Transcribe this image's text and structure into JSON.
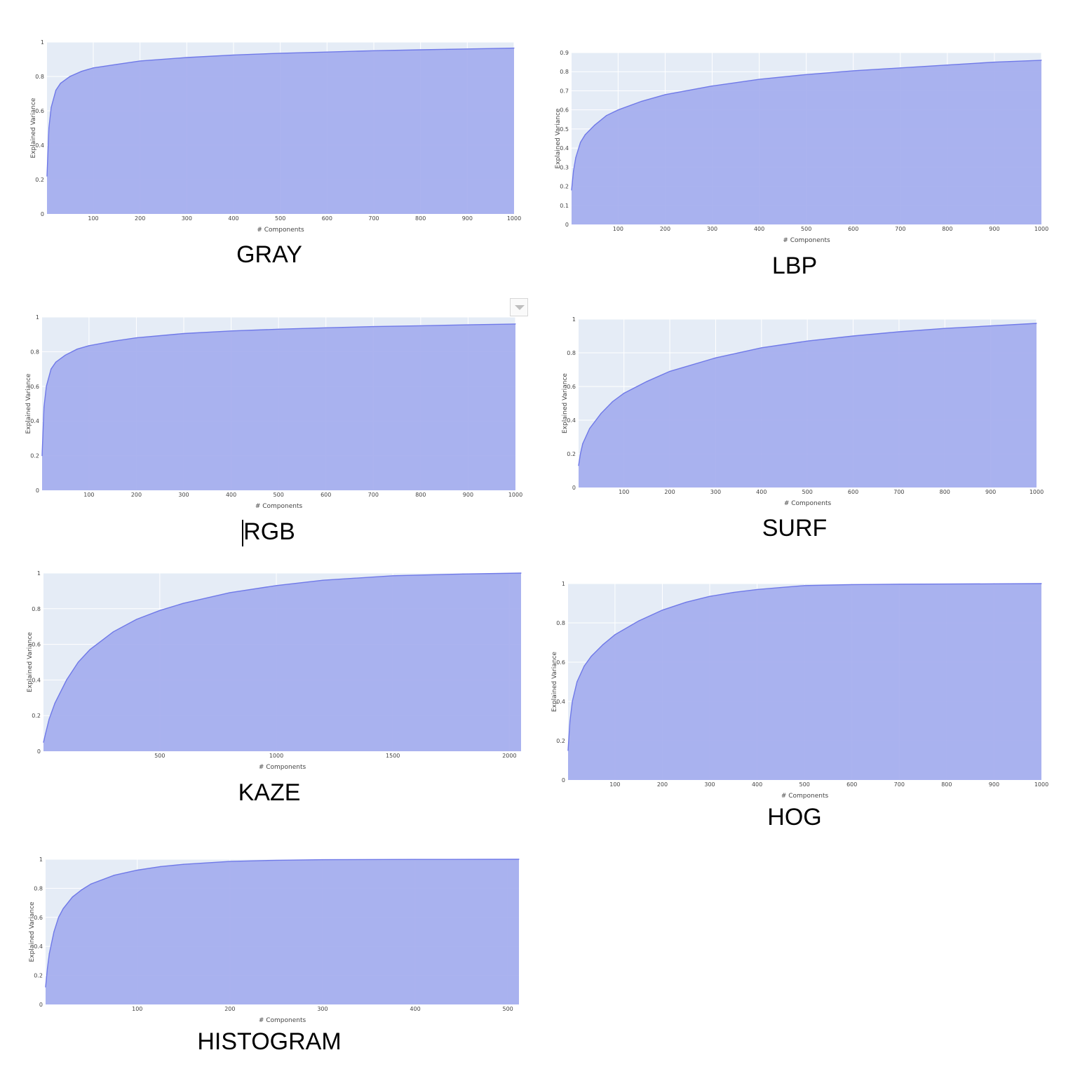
{
  "colors": {
    "plot_bg": "#e5ecf6",
    "grid": "#ffffff",
    "fill": "#a4acee",
    "line": "#6f79e8",
    "tick_text": "#444444"
  },
  "controls": {
    "dropdown_icon": "chevron-down-icon"
  },
  "chart_data": [
    {
      "id": "gray",
      "type": "area",
      "caption": "GRAY",
      "xlabel": "# Components",
      "ylabel": "Explained Variance",
      "xlim": [
        1,
        1000
      ],
      "ylim": [
        0,
        1
      ],
      "xticks": [
        100,
        200,
        300,
        400,
        500,
        600,
        700,
        800,
        900,
        1000
      ],
      "yticks": [
        0,
        0.2,
        0.4,
        0.6,
        0.8,
        1
      ],
      "ytick_labels": [
        "0",
        "0.2",
        "0.4",
        "0.6",
        "0.8",
        "1"
      ],
      "grid": true,
      "x": [
        1,
        5,
        10,
        20,
        30,
        50,
        75,
        100,
        150,
        200,
        300,
        400,
        500,
        600,
        700,
        800,
        900,
        1000
      ],
      "y": [
        0.22,
        0.5,
        0.62,
        0.72,
        0.76,
        0.8,
        0.83,
        0.85,
        0.87,
        0.89,
        0.91,
        0.925,
        0.935,
        0.942,
        0.95,
        0.955,
        0.96,
        0.965
      ]
    },
    {
      "id": "lbp",
      "type": "area",
      "caption": "LBP",
      "xlabel": "# Components",
      "ylabel": "Explained Variance",
      "xlim": [
        1,
        1000
      ],
      "ylim": [
        0,
        0.9
      ],
      "xticks": [
        100,
        200,
        300,
        400,
        500,
        600,
        700,
        800,
        900,
        1000
      ],
      "yticks": [
        0,
        0.1,
        0.2,
        0.3,
        0.4,
        0.5,
        0.6,
        0.7,
        0.8,
        0.9
      ],
      "ytick_labels": [
        "0",
        "0.1",
        "0.2",
        "0.3",
        "0.4",
        "0.5",
        "0.6",
        "0.7",
        "0.8",
        "0.9"
      ],
      "grid": true,
      "x": [
        1,
        5,
        10,
        20,
        30,
        50,
        75,
        100,
        150,
        200,
        300,
        400,
        500,
        600,
        700,
        800,
        900,
        1000
      ],
      "y": [
        0.18,
        0.28,
        0.35,
        0.43,
        0.47,
        0.52,
        0.57,
        0.6,
        0.645,
        0.68,
        0.725,
        0.76,
        0.785,
        0.805,
        0.82,
        0.835,
        0.85,
        0.86
      ]
    },
    {
      "id": "rgb",
      "type": "area",
      "caption": "RGB",
      "xlabel": "# Components",
      "ylabel": "Explained Variance",
      "xlim": [
        1,
        1000
      ],
      "ylim": [
        0,
        1
      ],
      "xticks": [
        100,
        200,
        300,
        400,
        500,
        600,
        700,
        800,
        900,
        1000
      ],
      "yticks": [
        0,
        0.2,
        0.4,
        0.6,
        0.8,
        1
      ],
      "ytick_labels": [
        "0",
        "0.2",
        "0.4",
        "0.6",
        "0.8",
        "1"
      ],
      "grid": true,
      "x": [
        1,
        5,
        10,
        20,
        30,
        50,
        75,
        100,
        150,
        200,
        300,
        400,
        500,
        600,
        700,
        800,
        900,
        1000
      ],
      "y": [
        0.2,
        0.48,
        0.6,
        0.7,
        0.74,
        0.78,
        0.815,
        0.835,
        0.86,
        0.88,
        0.905,
        0.92,
        0.93,
        0.938,
        0.945,
        0.95,
        0.955,
        0.96
      ]
    },
    {
      "id": "surf",
      "type": "area",
      "caption": "SURF",
      "xlabel": "# Components",
      "ylabel": "Explained Variance",
      "xlim": [
        1,
        1000
      ],
      "ylim": [
        0,
        1
      ],
      "xticks": [
        100,
        200,
        300,
        400,
        500,
        600,
        700,
        800,
        900,
        1000
      ],
      "yticks": [
        0,
        0.2,
        0.4,
        0.6,
        0.8,
        1
      ],
      "ytick_labels": [
        "0",
        "0.2",
        "0.4",
        "0.6",
        "0.8",
        "1"
      ],
      "grid": true,
      "x": [
        1,
        5,
        10,
        25,
        50,
        75,
        100,
        150,
        200,
        300,
        400,
        500,
        600,
        700,
        800,
        900,
        1000
      ],
      "y": [
        0.13,
        0.2,
        0.26,
        0.35,
        0.44,
        0.51,
        0.56,
        0.63,
        0.69,
        0.77,
        0.83,
        0.87,
        0.9,
        0.925,
        0.945,
        0.96,
        0.975
      ]
    },
    {
      "id": "kaze",
      "type": "area",
      "caption": "KAZE",
      "xlabel": "# Components",
      "ylabel": "Explained Variance",
      "xlim": [
        1,
        2050
      ],
      "ylim": [
        0,
        1
      ],
      "xticks": [
        500,
        1000,
        1500,
        2000
      ],
      "yticks": [
        0,
        0.2,
        0.4,
        0.6,
        0.8,
        1
      ],
      "ytick_labels": [
        "0",
        "0.2",
        "0.4",
        "0.6",
        "0.8",
        "1"
      ],
      "grid": true,
      "x": [
        1,
        10,
        25,
        50,
        100,
        150,
        200,
        300,
        400,
        500,
        600,
        700,
        800,
        1000,
        1200,
        1500,
        1800,
        2050
      ],
      "y": [
        0.05,
        0.1,
        0.18,
        0.27,
        0.4,
        0.5,
        0.57,
        0.67,
        0.74,
        0.79,
        0.83,
        0.86,
        0.89,
        0.93,
        0.96,
        0.985,
        0.995,
        1.0
      ]
    },
    {
      "id": "hog",
      "type": "area",
      "caption": "HOG",
      "xlabel": "# Components",
      "ylabel": "Explained Variance",
      "xlim": [
        1,
        1000
      ],
      "ylim": [
        0,
        1
      ],
      "xticks": [
        100,
        200,
        300,
        400,
        500,
        600,
        700,
        800,
        900,
        1000
      ],
      "yticks": [
        0,
        0.2,
        0.4,
        0.6,
        0.8,
        1
      ],
      "ytick_labels": [
        "0",
        "0.2",
        "0.4",
        "0.6",
        "0.8",
        "1"
      ],
      "grid": true,
      "x": [
        1,
        5,
        10,
        20,
        35,
        50,
        75,
        100,
        150,
        200,
        250,
        300,
        350,
        400,
        450,
        500,
        600,
        700,
        800,
        900,
        1000
      ],
      "y": [
        0.15,
        0.3,
        0.4,
        0.5,
        0.58,
        0.63,
        0.69,
        0.74,
        0.81,
        0.865,
        0.905,
        0.935,
        0.955,
        0.97,
        0.98,
        0.99,
        0.995,
        0.997,
        0.998,
        0.999,
        1.0
      ]
    },
    {
      "id": "histogram",
      "type": "area",
      "caption": "HISTOGRAM",
      "xlabel": "# Components",
      "ylabel": "Explained Variance",
      "xlim": [
        1,
        512
      ],
      "ylim": [
        0,
        1
      ],
      "xticks": [
        100,
        200,
        300,
        400,
        500
      ],
      "yticks": [
        0,
        0.2,
        0.4,
        0.6,
        0.8,
        1
      ],
      "ytick_labels": [
        "0",
        "0.2",
        "0.4",
        "0.6",
        "0.8",
        "1"
      ],
      "grid": true,
      "x": [
        1,
        3,
        5,
        10,
        15,
        20,
        30,
        40,
        50,
        75,
        100,
        125,
        150,
        200,
        250,
        300,
        400,
        512
      ],
      "y": [
        0.12,
        0.25,
        0.35,
        0.5,
        0.6,
        0.66,
        0.74,
        0.79,
        0.83,
        0.89,
        0.925,
        0.95,
        0.965,
        0.985,
        0.993,
        0.997,
        0.999,
        1.0
      ]
    }
  ]
}
